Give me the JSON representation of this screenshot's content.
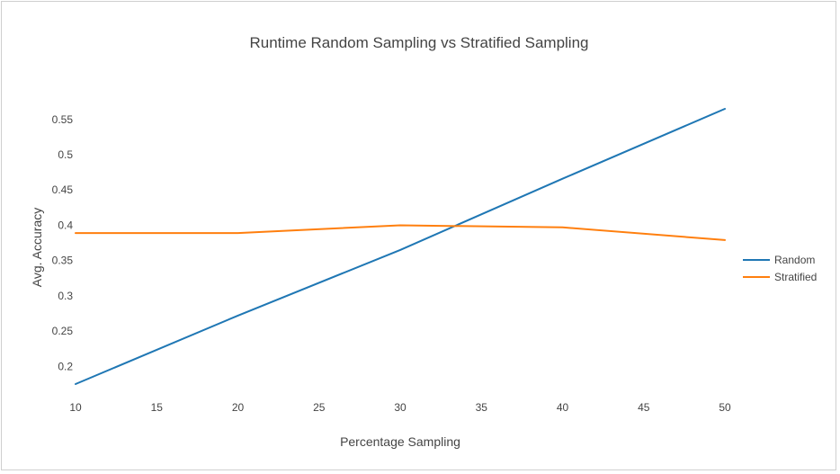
{
  "chart_data": {
    "type": "line",
    "title": "Runtime Random Sampling vs Stratified Sampling",
    "xlabel": "Percentage Sampling",
    "ylabel": "Avg. Accuracy",
    "x": [
      10,
      20,
      30,
      40,
      50
    ],
    "xlim": [
      10,
      50
    ],
    "ylim": [
      0.175,
      0.565
    ],
    "xticks": [
      10,
      15,
      20,
      25,
      30,
      35,
      40,
      45,
      50
    ],
    "yticks": [
      0.2,
      0.25,
      0.3,
      0.35,
      0.4,
      0.45,
      0.5,
      0.55
    ],
    "ytick_labels": [
      "0.2",
      "0.25",
      "0.3",
      "0.35",
      "0.4",
      "0.45",
      "0.5",
      "0.55"
    ],
    "grid": false,
    "legend_position": "right",
    "series": [
      {
        "name": "Random",
        "color": "#1f77b4",
        "values": [
          0.175,
          0.272,
          0.365,
          0.466,
          0.565
        ]
      },
      {
        "name": "Stratified",
        "color": "#ff7f0e",
        "values": [
          0.389,
          0.389,
          0.4,
          0.397,
          0.379
        ]
      }
    ]
  }
}
